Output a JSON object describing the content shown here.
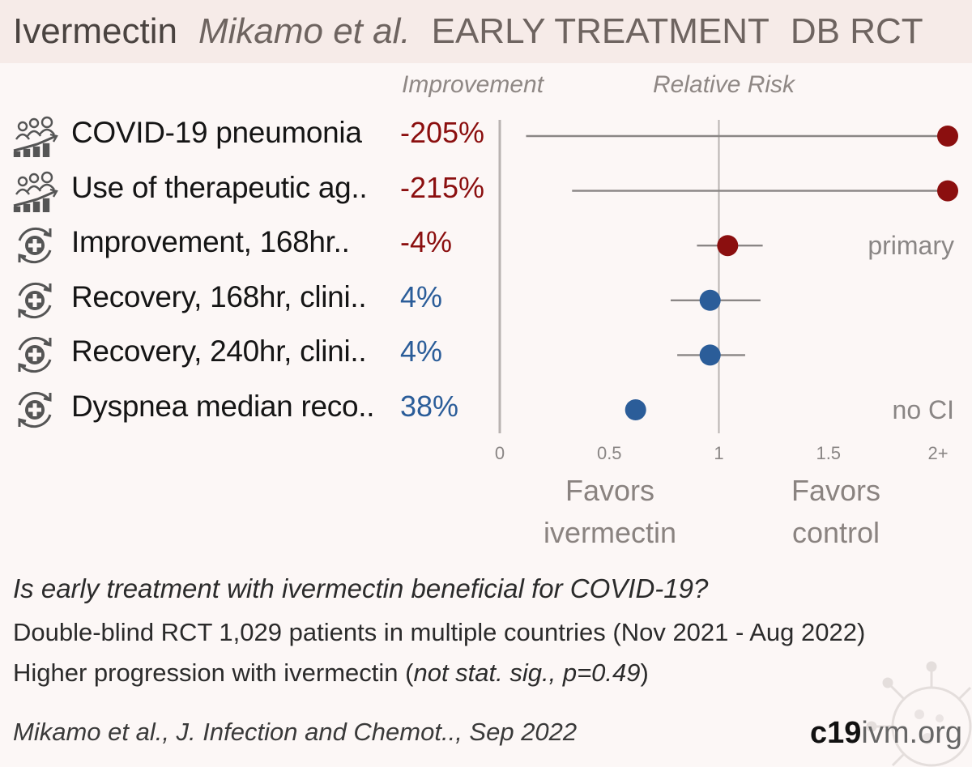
{
  "header": {
    "drug": "Ivermectin",
    "authors": "Mikamo et al.",
    "stage": "EARLY TREATMENT",
    "design": "DB RCT"
  },
  "columns": {
    "improvement": "Improvement",
    "relative_risk": "Relative Risk"
  },
  "rows": [
    {
      "label": "COVID-19 pneumonia",
      "value": "-205%",
      "icon": "progression-people-icon"
    },
    {
      "label": "Use of therapeutic ag..",
      "value": "-215%",
      "icon": "progression-people-icon"
    },
    {
      "label": "Improvement, 168hr..",
      "value": "-4%",
      "icon": "recovery-cycle-icon"
    },
    {
      "label": "Recovery, 168hr, clini..",
      "value": "4%",
      "icon": "recovery-cycle-icon"
    },
    {
      "label": "Recovery, 240hr, clini..",
      "value": "4%",
      "icon": "recovery-cycle-icon"
    },
    {
      "label": "Dyspnea median reco..",
      "value": "38%",
      "icon": "recovery-cycle-icon"
    }
  ],
  "chart_data": {
    "type": "scatter",
    "subtype": "forest-plot",
    "categories": [
      "COVID-19 pneumonia",
      "Use of therapeutic ag..",
      "Improvement, 168hr..",
      "Recovery, 168hr, clini..",
      "Recovery, 240hr, clini..",
      "Dyspnea median reco.."
    ],
    "points": [
      {
        "rr": 3.05,
        "ci_low": 0.12,
        "ci_high": 3.05,
        "clipped_right": true,
        "note": ""
      },
      {
        "rr": 3.15,
        "ci_low": 0.33,
        "ci_high": 3.15,
        "clipped_right": true,
        "note": ""
      },
      {
        "rr": 1.04,
        "ci_low": 0.9,
        "ci_high": 1.2,
        "note": "primary"
      },
      {
        "rr": 0.96,
        "ci_low": 0.78,
        "ci_high": 1.19,
        "note": ""
      },
      {
        "rr": 0.96,
        "ci_low": 0.81,
        "ci_high": 1.12,
        "note": ""
      },
      {
        "rr": 0.62,
        "ci_low": null,
        "ci_high": null,
        "note": "no CI"
      }
    ],
    "xlim": [
      0,
      2
    ],
    "ticks": [
      {
        "value": 0,
        "label": "0"
      },
      {
        "value": 0.5,
        "label": "0.5"
      },
      {
        "value": 1,
        "label": "1"
      },
      {
        "value": 1.5,
        "label": "1.5"
      },
      {
        "value": 2,
        "label": "2+"
      }
    ],
    "reference_line": 1,
    "left_label": "Favors\nivermectin",
    "right_label": "Favors\ncontrol",
    "colors": {
      "harm": "#8b0f0f",
      "benefit": "#2b5d99",
      "ci": "#8a8685",
      "axis": "#b9b3b1"
    }
  },
  "footer": {
    "question": "Is early treatment with ivermectin beneficial for COVID-19?",
    "line2": "Double-blind RCT 1,029 patients in multiple countries (Nov 2021 - Aug 2022)",
    "line3_prefix": "Higher progression with ivermectin (",
    "line3_em": "not stat. sig., p=0.49",
    "line3_suffix": ")",
    "citation": "Mikamo et al., J. Infection and Chemot.., Sep 2022",
    "brand_bold": "c19",
    "brand_rest": "ivm.org"
  }
}
